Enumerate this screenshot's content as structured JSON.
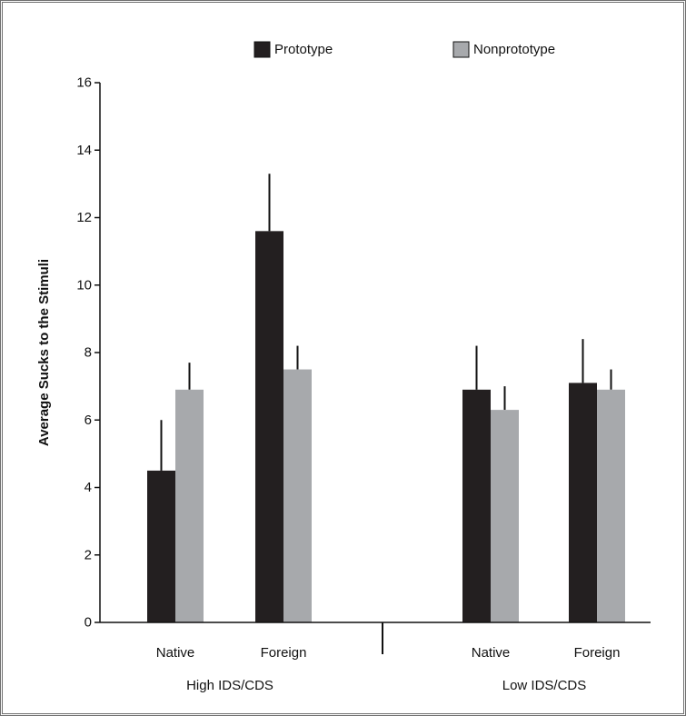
{
  "chart_data": {
    "type": "bar",
    "ylabel": "Average Sucks to the Stimuli",
    "xlabel": "",
    "ylim": [
      0,
      16
    ],
    "yticks": [
      "0",
      "2",
      "4",
      "6",
      "8",
      "10",
      "12",
      "14",
      "16"
    ],
    "grid": false,
    "legend_position": "top",
    "groups": [
      {
        "label": "High IDS/CDS",
        "categories": [
          "Native",
          "Foreign"
        ]
      },
      {
        "label": "Low IDS/CDS",
        "categories": [
          "Native",
          "Foreign"
        ]
      }
    ],
    "categories": [
      "Native",
      "Foreign",
      "Native",
      "Foreign"
    ],
    "series": [
      {
        "name": "Prototype",
        "color": "#231f20",
        "values": [
          4.5,
          11.6,
          6.9,
          7.1
        ],
        "error_upper": [
          6.0,
          13.3,
          8.2,
          8.4
        ]
      },
      {
        "name": "Nonprototype",
        "color": "#a7a9ac",
        "values": [
          6.9,
          7.5,
          6.3,
          6.9
        ],
        "error_upper": [
          7.7,
          8.2,
          7.0,
          7.5
        ]
      }
    ]
  }
}
